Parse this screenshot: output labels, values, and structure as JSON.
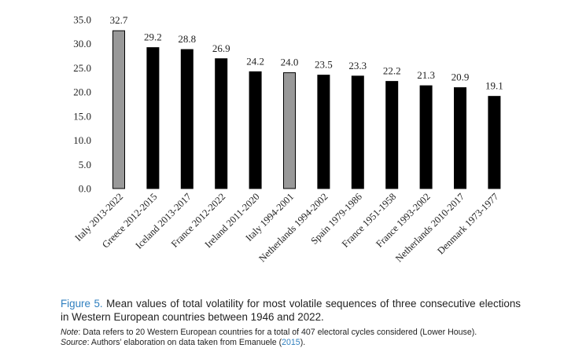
{
  "chart_data": {
    "type": "bar",
    "categories": [
      "Italy 2013-2022",
      "Greece 2012-2015",
      "Iceland 2013-2017",
      "France 2012-2022",
      "Ireland 2011-2020",
      "Italy 1994-2001",
      "Netherlands 1994-2002",
      "Spain 1979-1986",
      "France 1951-1958",
      "France 1993-2002",
      "Netherlands 2010-2017",
      "Denmark 1973-1977"
    ],
    "values": [
      32.7,
      29.2,
      28.8,
      26.9,
      24.2,
      24.0,
      23.5,
      23.3,
      22.2,
      21.3,
      20.9,
      19.1
    ],
    "value_labels": [
      "32.7",
      "29.2",
      "28.8",
      "26.9",
      "24.2",
      "24.0",
      "23.5",
      "23.3",
      "22.2",
      "21.3",
      "20.9",
      "19.1"
    ],
    "highlighted": [
      true,
      false,
      false,
      false,
      false,
      true,
      false,
      false,
      false,
      false,
      false,
      false
    ],
    "ylim": [
      0,
      35
    ],
    "yticks": [
      "0.0",
      "5.0",
      "10.0",
      "15.0",
      "20.0",
      "25.0",
      "30.0",
      "35.0"
    ],
    "title": "",
    "xlabel": "",
    "ylabel": "",
    "grid": false,
    "colors": {
      "bar": "#000000",
      "highlight": "#999999",
      "edge": "#000000"
    }
  },
  "caption": {
    "figure_label": "Figure 5.",
    "text": "Mean values of total volatility for most volatile sequences of three consecutive elections in Western European countries between 1946 and 2022."
  },
  "notes": {
    "note_label": "Note",
    "note_text": ": Data refers to 20 Western European countries for a total of 407 electoral cycles considered (Lower House).",
    "source_label": "Source",
    "source_text": ": Authors’ elaboration on data taken from Emanuele (",
    "source_ref": "2015",
    "source_end": ")."
  },
  "colors": {
    "figure_label": "#2f7fbf",
    "text": "#222222"
  }
}
